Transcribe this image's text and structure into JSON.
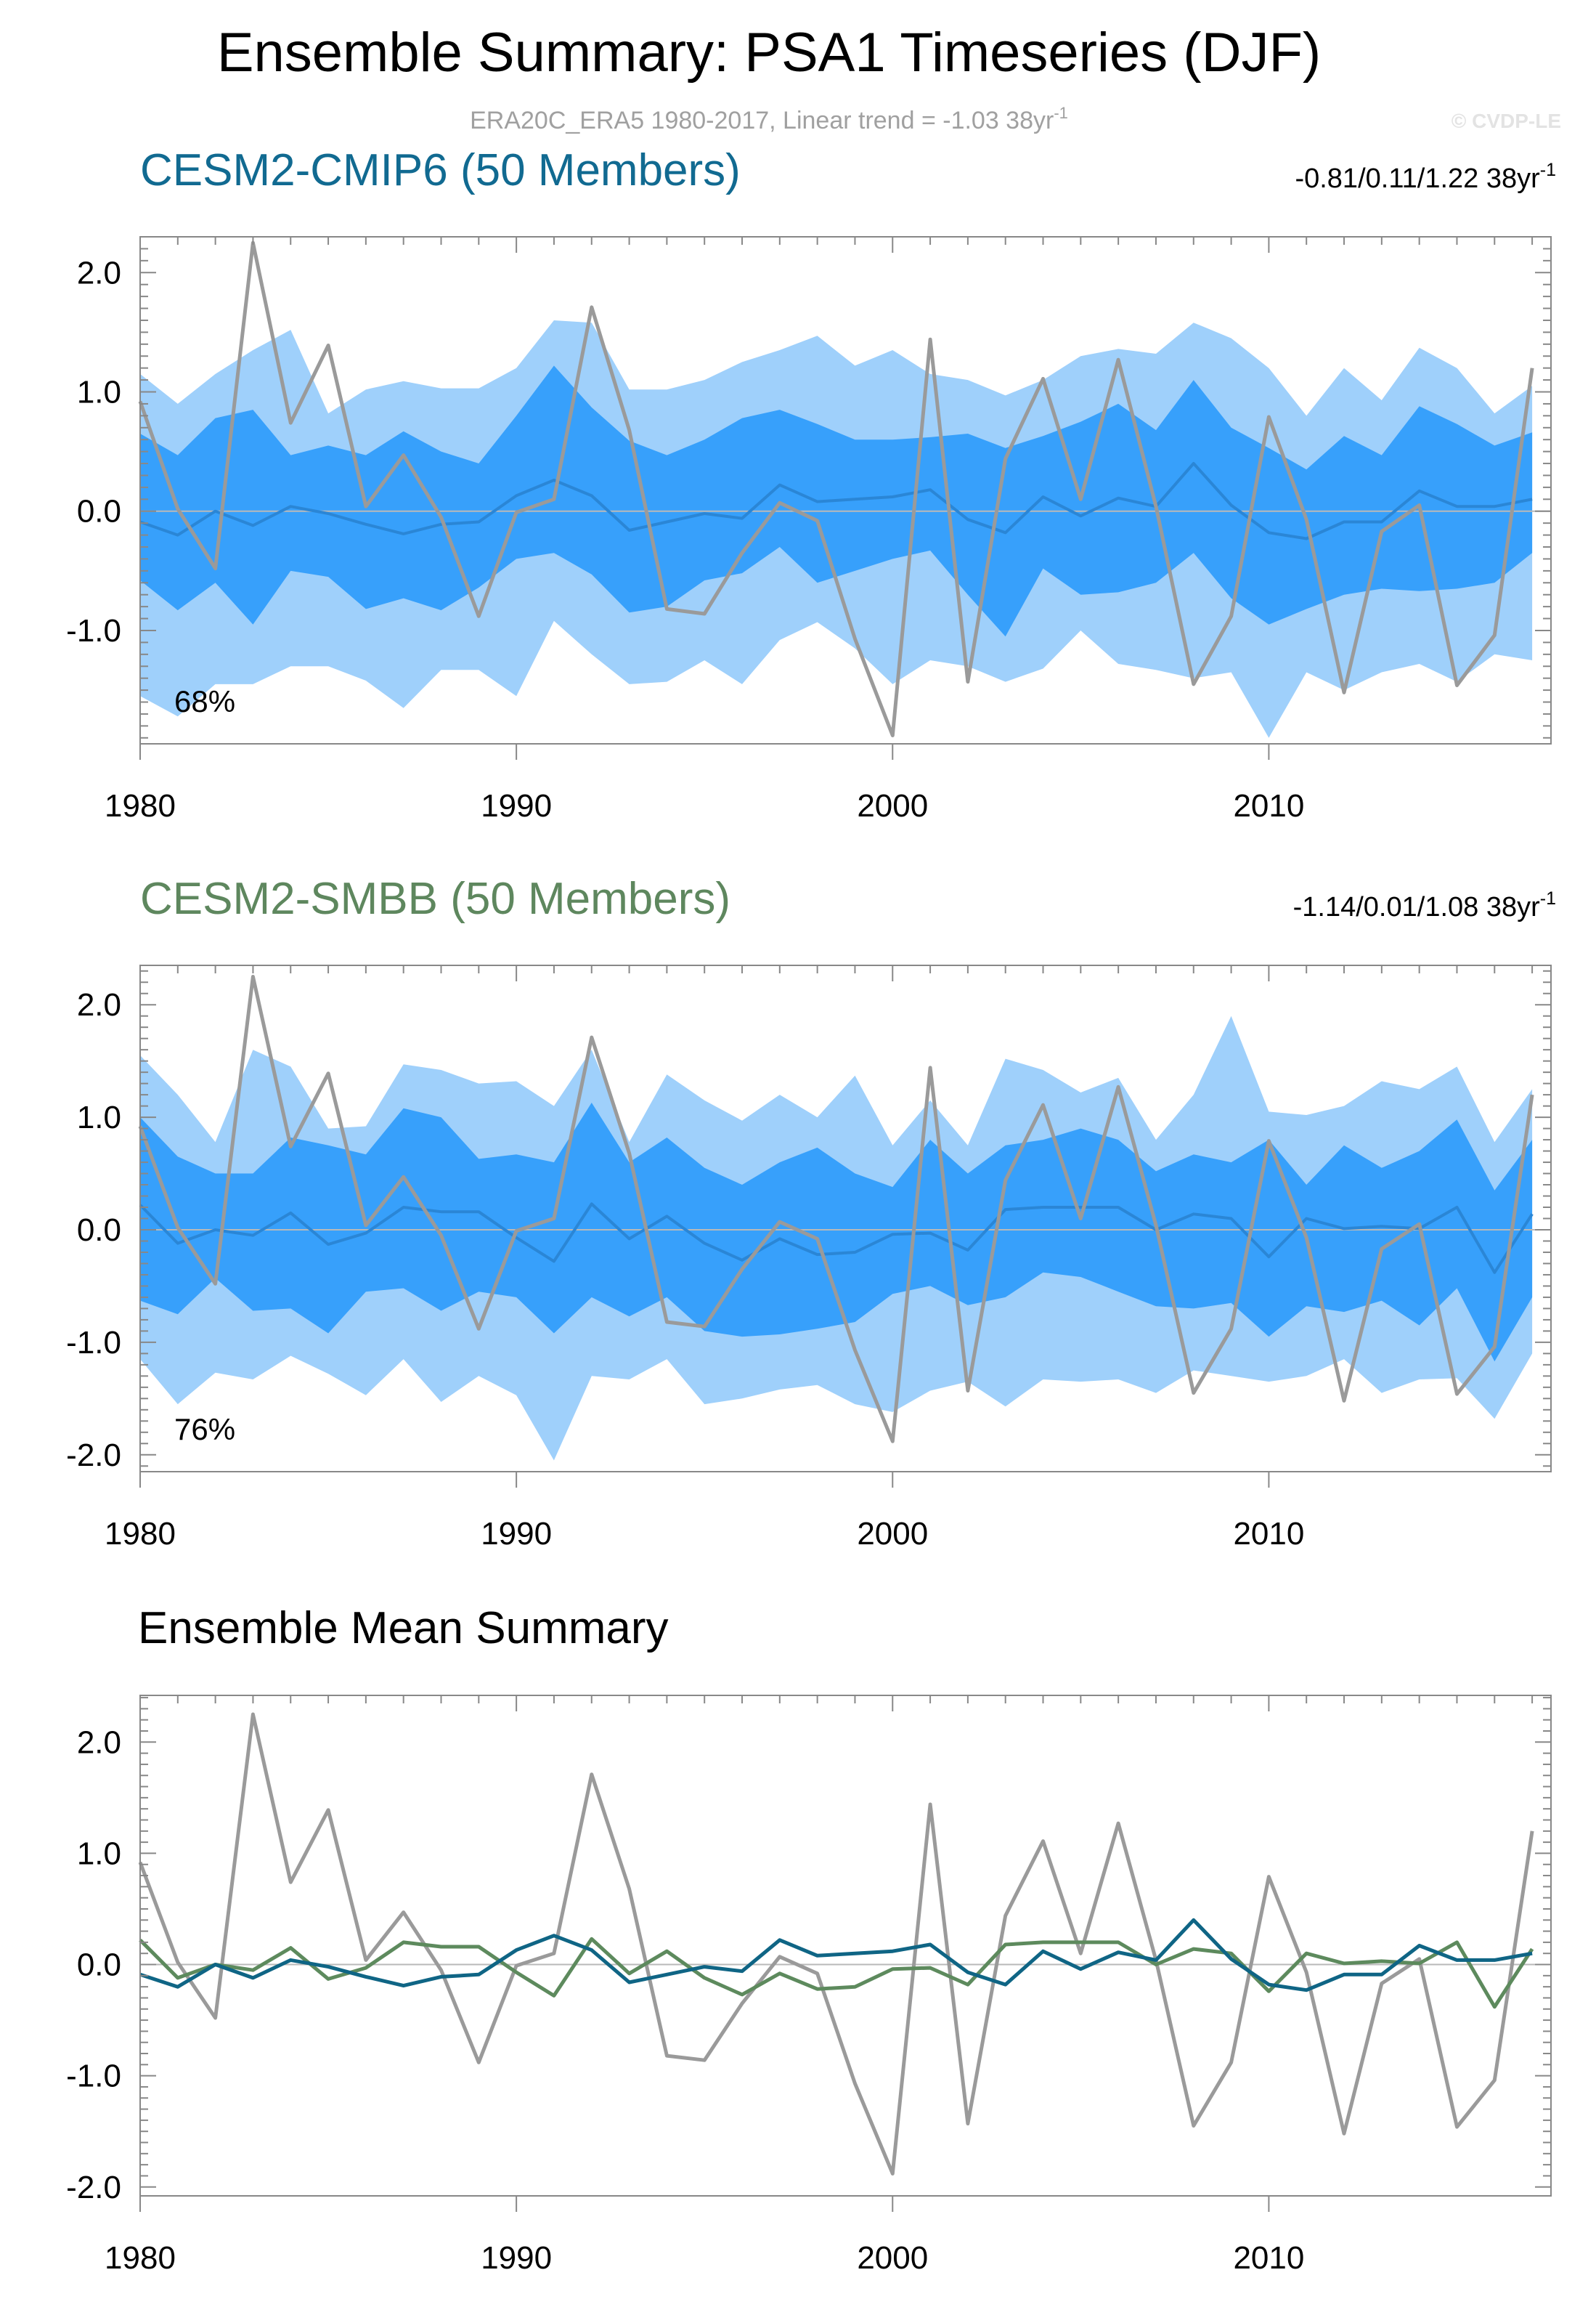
{
  "title": "Ensemble Summary: PSA1 Timeseries (DJF)",
  "subtitle": "ERA20C_ERA5 1980-2017, Linear trend = -1.03 38yr",
  "subtitle_sup": "-1",
  "copyright": "© CVDP-LE",
  "colors": {
    "outer_band": "#9fd0fb",
    "inner_band": "#37a0fb",
    "cmip6_mean": "#2a86d6",
    "cmip6_title": "#116a91",
    "smbb_title": "#5e875e",
    "observed": "#9a9a9a",
    "mean_cmip6": "#0f6585",
    "mean_smbb": "#5d8a5d",
    "zero_line": "#b9b9b9",
    "frame": "#888888"
  },
  "chart_data": [
    {
      "type": "line",
      "title": "CESM2-CMIP6 (50 Members)",
      "range_label": "-0.81/0.11/1.22 38yr",
      "range_sup": "-1",
      "pct_label": "68%",
      "x": [
        1980,
        1981,
        1982,
        1983,
        1984,
        1985,
        1986,
        1987,
        1988,
        1989,
        1990,
        1991,
        1992,
        1993,
        1994,
        1995,
        1996,
        1997,
        1998,
        1999,
        2000,
        2001,
        2002,
        2003,
        2004,
        2005,
        2006,
        2007,
        2008,
        2009,
        2010,
        2011,
        2012,
        2013,
        2014,
        2015,
        2016,
        2017
      ],
      "xlim": [
        1980,
        2017.5
      ],
      "ylim": [
        -1.95,
        2.3
      ],
      "xticks": [
        1980,
        1990,
        2000,
        2010
      ],
      "yticks": [
        2.0,
        1.0,
        0.0,
        -1.0
      ],
      "ytick_labels": [
        "2.0",
        "1.0",
        "0.0",
        "-1.0"
      ],
      "series": [
        {
          "name": "outer_upper",
          "values": [
            1.15,
            0.9,
            1.15,
            1.35,
            1.52,
            0.82,
            1.02,
            1.09,
            1.03,
            1.03,
            1.2,
            1.6,
            1.58,
            1.02,
            1.02,
            1.1,
            1.25,
            1.35,
            1.47,
            1.22,
            1.35,
            1.15,
            1.1,
            0.97,
            1.1,
            1.3,
            1.36,
            1.32,
            1.58,
            1.45,
            1.2,
            0.8,
            1.2,
            0.93,
            1.37,
            1.2,
            0.82,
            1.05
          ]
        },
        {
          "name": "inner_upper",
          "values": [
            0.65,
            0.47,
            0.78,
            0.85,
            0.47,
            0.55,
            0.47,
            0.67,
            0.5,
            0.4,
            0.8,
            1.22,
            0.87,
            0.59,
            0.47,
            0.6,
            0.78,
            0.85,
            0.73,
            0.6,
            0.6,
            0.62,
            0.65,
            0.53,
            0.63,
            0.75,
            0.9,
            0.68,
            1.1,
            0.7,
            0.53,
            0.35,
            0.63,
            0.47,
            0.88,
            0.73,
            0.55,
            0.66
          ]
        },
        {
          "name": "ensemble_mean",
          "values": [
            -0.09,
            -0.2,
            0.0,
            -0.12,
            0.04,
            -0.02,
            -0.11,
            -0.19,
            -0.11,
            -0.09,
            0.13,
            0.26,
            0.13,
            -0.16,
            -0.09,
            -0.02,
            -0.06,
            0.22,
            0.08,
            0.1,
            0.12,
            0.18,
            -0.07,
            -0.18,
            0.12,
            -0.04,
            0.11,
            0.04,
            0.4,
            0.05,
            -0.18,
            -0.23,
            -0.09,
            -0.09,
            0.17,
            0.04,
            0.04,
            0.1
          ]
        },
        {
          "name": "inner_lower",
          "values": [
            -0.58,
            -0.83,
            -0.6,
            -0.95,
            -0.5,
            -0.55,
            -0.82,
            -0.73,
            -0.83,
            -0.64,
            -0.4,
            -0.35,
            -0.53,
            -0.85,
            -0.8,
            -0.58,
            -0.52,
            -0.3,
            -0.6,
            -0.5,
            -0.4,
            -0.33,
            -0.7,
            -1.05,
            -0.48,
            -0.7,
            -0.68,
            -0.6,
            -0.35,
            -0.73,
            -0.95,
            -0.82,
            -0.7,
            -0.65,
            -0.67,
            -0.65,
            -0.6,
            -0.35
          ]
        },
        {
          "name": "outer_lower",
          "values": [
            -1.55,
            -1.72,
            -1.45,
            -1.45,
            -1.3,
            -1.3,
            -1.42,
            -1.65,
            -1.33,
            -1.33,
            -1.55,
            -0.92,
            -1.2,
            -1.45,
            -1.43,
            -1.25,
            -1.45,
            -1.08,
            -0.93,
            -1.15,
            -1.45,
            -1.25,
            -1.3,
            -1.43,
            -1.32,
            -1.0,
            -1.28,
            -1.33,
            -1.4,
            -1.35,
            -1.9,
            -1.35,
            -1.5,
            -1.35,
            -1.28,
            -1.43,
            -1.2,
            -1.25
          ]
        },
        {
          "name": "ERA20C_ERA5",
          "values": [
            0.92,
            0.02,
            -0.48,
            2.25,
            0.74,
            1.39,
            0.04,
            0.47,
            -0.05,
            -0.88,
            -0.01,
            0.1,
            1.71,
            0.68,
            -0.82,
            -0.86,
            -0.35,
            0.07,
            -0.08,
            -1.07,
            -1.88,
            1.44,
            -1.43,
            0.44,
            1.11,
            0.1,
            1.27,
            0.04,
            -1.45,
            -0.88,
            0.79,
            -0.07,
            -1.52,
            -0.17,
            0.05,
            -1.46,
            -1.04,
            1.2
          ]
        }
      ]
    },
    {
      "type": "line",
      "title": "CESM2-SMBB (50 Members)",
      "range_label": "-1.14/0.01/1.08 38yr",
      "range_sup": "-1",
      "pct_label": "76%",
      "x": [
        1980,
        1981,
        1982,
        1983,
        1984,
        1985,
        1986,
        1987,
        1988,
        1989,
        1990,
        1991,
        1992,
        1993,
        1994,
        1995,
        1996,
        1997,
        1998,
        1999,
        2000,
        2001,
        2002,
        2003,
        2004,
        2005,
        2006,
        2007,
        2008,
        2009,
        2010,
        2011,
        2012,
        2013,
        2014,
        2015,
        2016,
        2017
      ],
      "xlim": [
        1980,
        2017.5
      ],
      "ylim": [
        -2.15,
        2.35
      ],
      "xticks": [
        1980,
        1990,
        2000,
        2010
      ],
      "yticks": [
        2.0,
        1.0,
        0.0,
        -1.0,
        -2.0
      ],
      "ytick_labels": [
        "2.0",
        "1.0",
        "0.0",
        "-1.0",
        "-2.0"
      ],
      "series": [
        {
          "name": "outer_upper",
          "values": [
            1.55,
            1.2,
            0.78,
            1.6,
            1.45,
            0.9,
            0.92,
            1.47,
            1.42,
            1.3,
            1.32,
            1.1,
            1.6,
            0.78,
            1.38,
            1.15,
            0.97,
            1.2,
            1.0,
            1.37,
            0.75,
            1.15,
            0.75,
            1.52,
            1.42,
            1.22,
            1.35,
            0.8,
            1.2,
            1.9,
            1.05,
            1.02,
            1.1,
            1.32,
            1.25,
            1.45,
            0.78,
            1.25
          ]
        },
        {
          "name": "inner_upper",
          "values": [
            1.0,
            0.65,
            0.5,
            0.5,
            0.82,
            0.75,
            0.67,
            1.08,
            1.0,
            0.63,
            0.67,
            0.6,
            1.13,
            0.6,
            0.82,
            0.55,
            0.4,
            0.6,
            0.73,
            0.5,
            0.38,
            0.8,
            0.5,
            0.75,
            0.8,
            0.9,
            0.8,
            0.52,
            0.67,
            0.6,
            0.8,
            0.4,
            0.75,
            0.55,
            0.7,
            0.98,
            0.35,
            0.8
          ]
        },
        {
          "name": "ensemble_mean",
          "values": [
            0.22,
            -0.12,
            0.0,
            -0.05,
            0.15,
            -0.13,
            -0.03,
            0.2,
            0.16,
            0.16,
            -0.07,
            -0.28,
            0.23,
            -0.08,
            0.12,
            -0.12,
            -0.27,
            -0.08,
            -0.22,
            -0.2,
            -0.04,
            -0.03,
            -0.18,
            0.18,
            0.2,
            0.2,
            0.2,
            0.0,
            0.14,
            0.1,
            -0.24,
            0.1,
            0.01,
            0.03,
            0.01,
            0.2,
            -0.38,
            0.14
          ]
        },
        {
          "name": "inner_lower",
          "values": [
            -0.63,
            -0.75,
            -0.43,
            -0.72,
            -0.7,
            -0.92,
            -0.55,
            -0.52,
            -0.72,
            -0.55,
            -0.6,
            -0.92,
            -0.6,
            -0.77,
            -0.6,
            -0.9,
            -0.95,
            -0.93,
            -0.88,
            -0.82,
            -0.57,
            -0.5,
            -0.67,
            -0.6,
            -0.38,
            -0.42,
            -0.55,
            -0.68,
            -0.7,
            -0.65,
            -0.95,
            -0.68,
            -0.73,
            -0.63,
            -0.85,
            -0.52,
            -1.17,
            -0.6
          ]
        },
        {
          "name": "outer_lower",
          "values": [
            -1.15,
            -1.55,
            -1.27,
            -1.33,
            -1.12,
            -1.28,
            -1.47,
            -1.15,
            -1.53,
            -1.3,
            -1.47,
            -2.05,
            -1.3,
            -1.33,
            -1.15,
            -1.55,
            -1.5,
            -1.42,
            -1.38,
            -1.55,
            -1.62,
            -1.43,
            -1.35,
            -1.57,
            -1.33,
            -1.35,
            -1.33,
            -1.45,
            -1.25,
            -1.3,
            -1.35,
            -1.3,
            -1.15,
            -1.45,
            -1.33,
            -1.32,
            -1.68,
            -1.1
          ]
        },
        {
          "name": "ERA20C_ERA5",
          "values": [
            0.92,
            0.02,
            -0.48,
            2.25,
            0.74,
            1.39,
            0.04,
            0.47,
            -0.05,
            -0.88,
            -0.01,
            0.1,
            1.71,
            0.68,
            -0.82,
            -0.86,
            -0.35,
            0.07,
            -0.08,
            -1.07,
            -1.88,
            1.44,
            -1.43,
            0.44,
            1.11,
            0.1,
            1.27,
            0.04,
            -1.45,
            -0.88,
            0.79,
            -0.07,
            -1.52,
            -0.17,
            0.05,
            -1.46,
            -1.04,
            1.2
          ]
        }
      ]
    },
    {
      "type": "line",
      "title": "Ensemble Mean Summary",
      "x": [
        1980,
        1981,
        1982,
        1983,
        1984,
        1985,
        1986,
        1987,
        1988,
        1989,
        1990,
        1991,
        1992,
        1993,
        1994,
        1995,
        1996,
        1997,
        1998,
        1999,
        2000,
        2001,
        2002,
        2003,
        2004,
        2005,
        2006,
        2007,
        2008,
        2009,
        2010,
        2011,
        2012,
        2013,
        2014,
        2015,
        2016,
        2017
      ],
      "xlim": [
        1980,
        2017.5
      ],
      "ylim": [
        -2.08,
        2.42
      ],
      "xticks": [
        1980,
        1990,
        2000,
        2010
      ],
      "yticks": [
        2.0,
        1.0,
        0.0,
        -1.0,
        -2.0
      ],
      "ytick_labels": [
        "2.0",
        "1.0",
        "0.0",
        "-1.0",
        "-2.0"
      ],
      "series": [
        {
          "name": "ERA20C_ERA5",
          "values": [
            0.92,
            0.02,
            -0.48,
            2.25,
            0.74,
            1.39,
            0.04,
            0.47,
            -0.05,
            -0.88,
            -0.01,
            0.1,
            1.71,
            0.68,
            -0.82,
            -0.86,
            -0.35,
            0.07,
            -0.08,
            -1.07,
            -1.88,
            1.44,
            -1.43,
            0.44,
            1.11,
            0.1,
            1.27,
            0.04,
            -1.45,
            -0.88,
            0.79,
            -0.07,
            -1.52,
            -0.17,
            0.05,
            -1.46,
            -1.04,
            1.2
          ]
        },
        {
          "name": "CESM2-SMBB",
          "values": [
            0.22,
            -0.12,
            0.0,
            -0.05,
            0.15,
            -0.13,
            -0.03,
            0.2,
            0.16,
            0.16,
            -0.07,
            -0.28,
            0.23,
            -0.08,
            0.12,
            -0.12,
            -0.27,
            -0.08,
            -0.22,
            -0.2,
            -0.04,
            -0.03,
            -0.18,
            0.18,
            0.2,
            0.2,
            0.2,
            0.0,
            0.14,
            0.1,
            -0.24,
            0.1,
            0.01,
            0.03,
            0.01,
            0.2,
            -0.38,
            0.14
          ]
        },
        {
          "name": "CESM2-CMIP6",
          "values": [
            -0.09,
            -0.2,
            0.0,
            -0.12,
            0.04,
            -0.02,
            -0.11,
            -0.19,
            -0.11,
            -0.09,
            0.13,
            0.26,
            0.13,
            -0.16,
            -0.09,
            -0.02,
            -0.06,
            0.22,
            0.08,
            0.1,
            0.12,
            0.18,
            -0.07,
            -0.18,
            0.12,
            -0.04,
            0.11,
            0.04,
            0.4,
            0.05,
            -0.18,
            -0.23,
            -0.09,
            -0.09,
            0.17,
            0.04,
            0.04,
            0.1
          ]
        }
      ]
    }
  ]
}
